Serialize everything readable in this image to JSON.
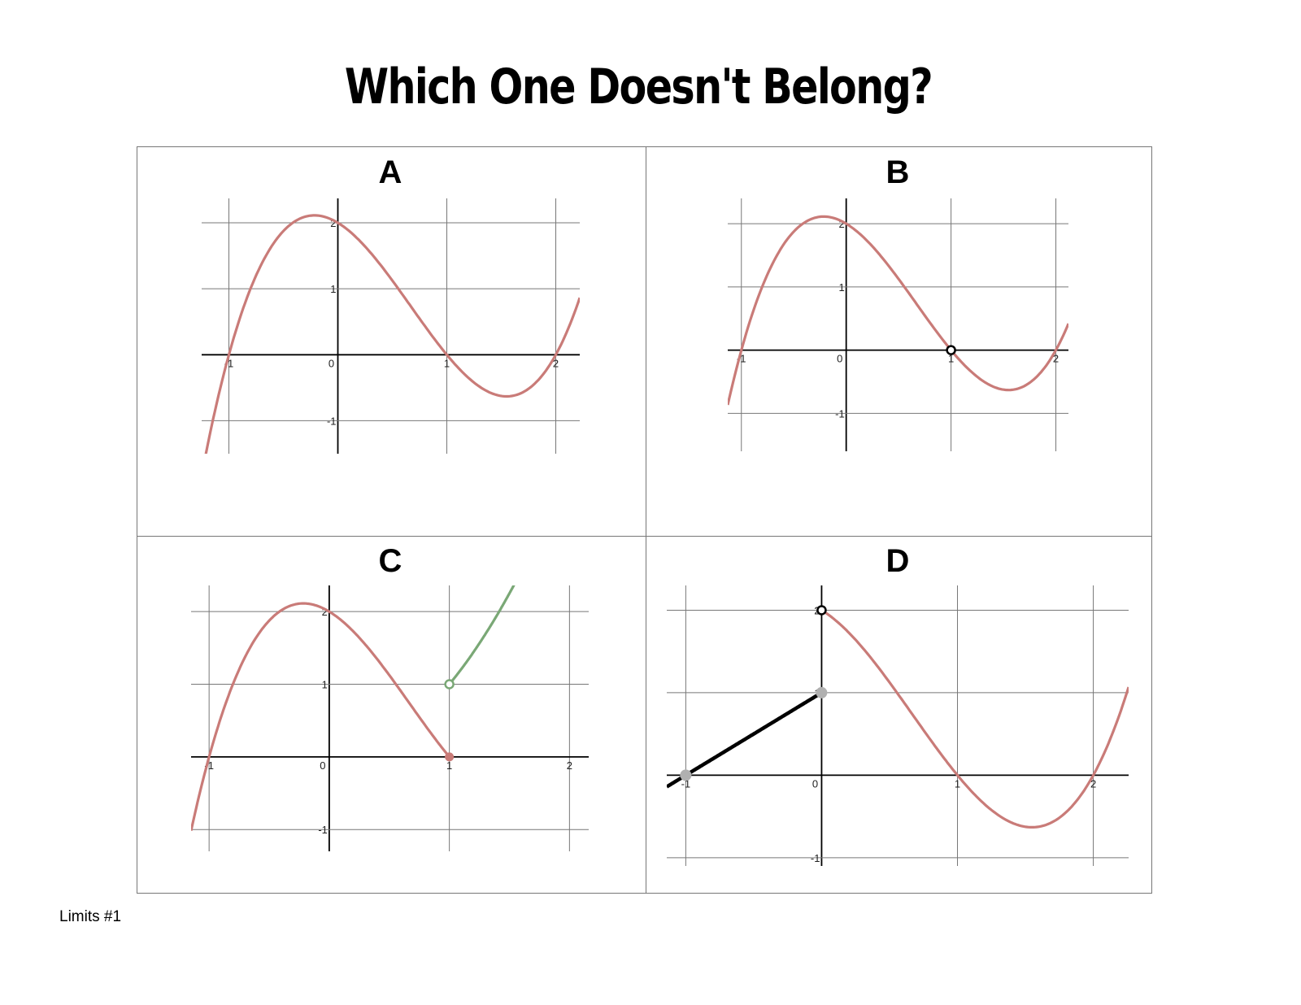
{
  "title": "Which One Doesn't Belong?",
  "footer": "Limits #1",
  "colors": {
    "curve": "#c97b78",
    "green": "#7aa876",
    "line": "#000000",
    "point_gray": "#b0b0b0",
    "grid": "#777777"
  },
  "chart_data": [
    {
      "label": "A",
      "type": "line",
      "grid": true,
      "xlim": [
        -1.25,
        2.22
      ],
      "ylim": [
        -1.5,
        2.37
      ],
      "xticks": [
        "-1",
        "0",
        "1",
        "2"
      ],
      "yticks": [
        "2",
        "1",
        "-1"
      ],
      "series": [
        {
          "expr": "(x+1)*(x-1)*(x-2)",
          "domain": [
            -1.25,
            2.22
          ],
          "color": "curve"
        }
      ],
      "points": []
    },
    {
      "label": "B",
      "type": "line",
      "grid": true,
      "xlim": [
        -1.13,
        2.12
      ],
      "ylim": [
        -1.6,
        2.4
      ],
      "xticks": [
        "-1",
        "0",
        "1",
        "2"
      ],
      "yticks": [
        "2",
        "1",
        "-1"
      ],
      "series": [
        {
          "expr": "(x+1)*(x-1)*(x-2)",
          "domain": [
            -1.13,
            2.12
          ],
          "color": "curve"
        }
      ],
      "points": [
        {
          "x": 1,
          "y": 0,
          "style": "open",
          "color": "line"
        }
      ]
    },
    {
      "label": "C",
      "type": "line",
      "grid": true,
      "xlim": [
        -1.15,
        2.16
      ],
      "ylim": [
        -1.3,
        2.36
      ],
      "xticks": [
        "-1",
        "0",
        "1",
        "2"
      ],
      "yticks": [
        "2",
        "1",
        "-1"
      ],
      "series": [
        {
          "expr": "(x+1)*(x-1)*(x-2)",
          "domain": [
            -1.15,
            1
          ],
          "color": "curve"
        },
        {
          "expr": "x*x",
          "domain": [
            1,
            1.54
          ],
          "color": "green"
        }
      ],
      "points": [
        {
          "x": 1,
          "y": 0,
          "style": "filled",
          "color": "curve"
        },
        {
          "x": 1,
          "y": 1,
          "style": "open",
          "color": "green"
        }
      ]
    },
    {
      "label": "D",
      "type": "line",
      "grid": true,
      "xlim": [
        -1.14,
        2.26
      ],
      "ylim": [
        -1.1,
        2.3
      ],
      "xticks": [
        "-1",
        "0",
        "1",
        "2"
      ],
      "yticks": [
        "2",
        "1",
        "-1"
      ],
      "series": [
        {
          "expr": "x+1",
          "domain": [
            -1.14,
            0
          ],
          "color": "line"
        },
        {
          "expr": "(x+1)*(x-1)*(x-2)",
          "domain": [
            0,
            2.26
          ],
          "color": "curve"
        }
      ],
      "points": [
        {
          "x": -1,
          "y": 0,
          "style": "gray",
          "color": "point_gray"
        },
        {
          "x": 0,
          "y": 1,
          "style": "gray",
          "color": "point_gray"
        },
        {
          "x": 0,
          "y": 2,
          "style": "open",
          "color": "line"
        }
      ]
    }
  ]
}
